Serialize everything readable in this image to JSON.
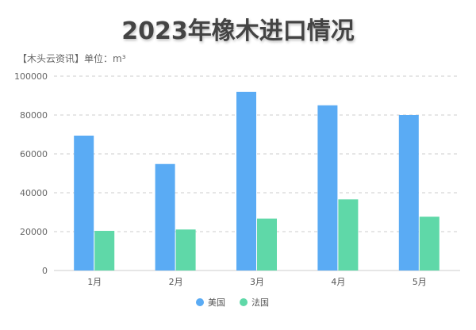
{
  "chart_data": {
    "type": "bar",
    "title": "2023年橡木进口情况",
    "subtitle": "【木头云资讯】单位：m³",
    "categories": [
      "1月",
      "2月",
      "3月",
      "4月",
      "5月"
    ],
    "series": [
      {
        "name": "美国",
        "color": "#5aabf4",
        "values": [
          69400,
          54800,
          91900,
          85000,
          80000
        ]
      },
      {
        "name": "法国",
        "color": "#5fd8a8",
        "values": [
          20400,
          21100,
          26700,
          36600,
          27700
        ]
      }
    ],
    "ylim": [
      0,
      100000
    ],
    "yticks": [
      "0",
      "20000",
      "40000",
      "60000",
      "80000",
      "100000"
    ],
    "grid": true,
    "legend": "bottom"
  }
}
